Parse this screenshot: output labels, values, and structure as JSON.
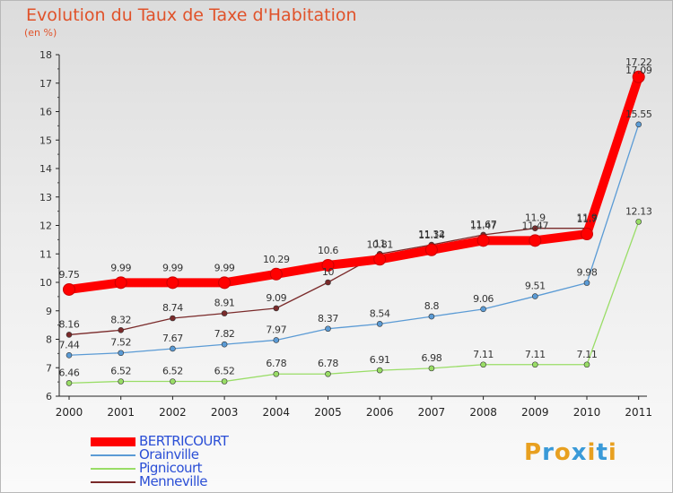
{
  "header": {
    "title": "Evolution du Taux de Taxe d'Habitation",
    "unit": "(en %)"
  },
  "logo": {
    "letters": [
      "P",
      "r",
      "o",
      "x",
      "i",
      "t",
      "i"
    ],
    "colors": [
      "#e8a020",
      "#3a9ad8",
      "#e8a020",
      "#3a9ad8",
      "#e8a020",
      "#3a9ad8",
      "#e8a020"
    ]
  },
  "chart_data": {
    "type": "line",
    "title": "Evolution du Taux de Taxe d'Habitation",
    "ylabel": "(en %)",
    "xlabel": "",
    "x": [
      "2000",
      "2001",
      "2002",
      "2003",
      "2004",
      "2005",
      "2006",
      "2007",
      "2008",
      "2009",
      "2010",
      "2011"
    ],
    "ylim": [
      6,
      18
    ],
    "yticks": [
      "6",
      "7",
      "8",
      "9",
      "10",
      "11",
      "12",
      "13",
      "14",
      "15",
      "16",
      "17",
      "18"
    ],
    "grid": false,
    "legend": "bottom-left",
    "series": [
      {
        "name": "BERTRICOURT",
        "color": "#ff0000",
        "style": "thick",
        "values": [
          9.75,
          9.99,
          9.99,
          9.99,
          10.29,
          10.6,
          10.81,
          11.14,
          11.47,
          11.47,
          11.7,
          17.22
        ],
        "labels": [
          "9.75",
          "9.99",
          "9.99",
          "9.99",
          "10.29",
          "10.6",
          "10.81",
          "11.14",
          "11.47",
          "11.47",
          "11.7",
          "17.22"
        ]
      },
      {
        "name": "Orainville",
        "color": "#5b9bd5",
        "style": "thin",
        "values": [
          7.44,
          7.52,
          7.67,
          7.82,
          7.97,
          8.37,
          8.54,
          8.8,
          9.06,
          9.51,
          9.98,
          15.55
        ],
        "labels": [
          "7.44",
          "7.52",
          "7.67",
          "7.82",
          "7.97",
          "8.37",
          "8.54",
          "8.8",
          "9.06",
          "9.51",
          "9.98",
          "15.55"
        ]
      },
      {
        "name": "Pignicourt",
        "color": "#99dd66",
        "style": "thin",
        "values": [
          6.46,
          6.52,
          6.52,
          6.52,
          6.78,
          6.78,
          6.91,
          6.98,
          7.11,
          7.11,
          7.11,
          12.13
        ],
        "labels": [
          "6.46",
          "6.52",
          "6.52",
          "6.52",
          "6.78",
          "6.78",
          "6.91",
          "6.98",
          "7.11",
          "7.11",
          "7.11",
          "12.13"
        ]
      },
      {
        "name": "Menneville",
        "color": "#7a2a2a",
        "style": "thin",
        "values": [
          8.16,
          8.32,
          8.74,
          8.91,
          9.09,
          10.0,
          11.0,
          11.32,
          11.67,
          11.9,
          11.9,
          17.09
        ],
        "labels": [
          "8.16",
          "8.32",
          "8.74",
          "8.91",
          "9.09",
          "10",
          "11",
          "11.32",
          "11.67",
          "11.9",
          "11.9",
          "17.09"
        ]
      }
    ]
  }
}
